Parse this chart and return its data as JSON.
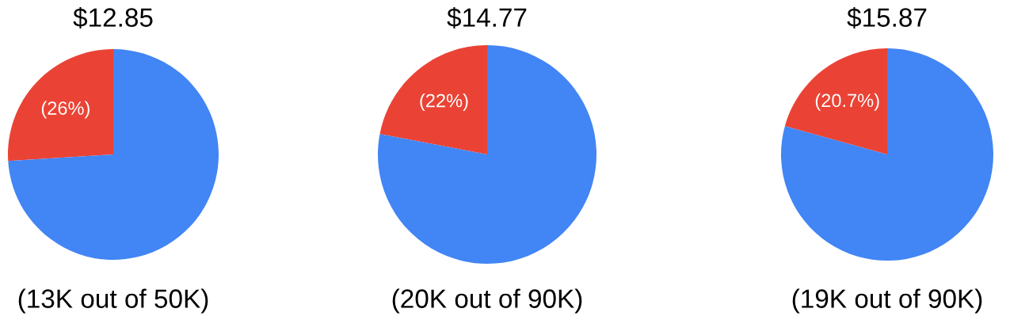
{
  "chart_data": [
    {
      "type": "pie",
      "title": "$12.85",
      "categories": [
        null,
        null
      ],
      "values": [
        26,
        74
      ],
      "colors": [
        "#ea4335",
        "#4285f4"
      ],
      "value_labels": [
        "(26%)",
        null
      ],
      "annotations": [
        "(13K out of 50K)"
      ]
    },
    {
      "type": "pie",
      "title": "$14.77",
      "categories": [
        null,
        null
      ],
      "values": [
        22,
        78
      ],
      "colors": [
        "#ea4335",
        "#4285f4"
      ],
      "value_labels": [
        "(22%)",
        null
      ],
      "annotations": [
        "(20K out of 90K)"
      ]
    },
    {
      "type": "pie",
      "title": "$15.87",
      "categories": [
        null,
        null
      ],
      "values": [
        20.7,
        79.3
      ],
      "colors": [
        "#ea4335",
        "#4285f4"
      ],
      "value_labels": [
        "(20.7%)",
        null
      ],
      "annotations": [
        "(19K out of 90K)"
      ]
    }
  ]
}
